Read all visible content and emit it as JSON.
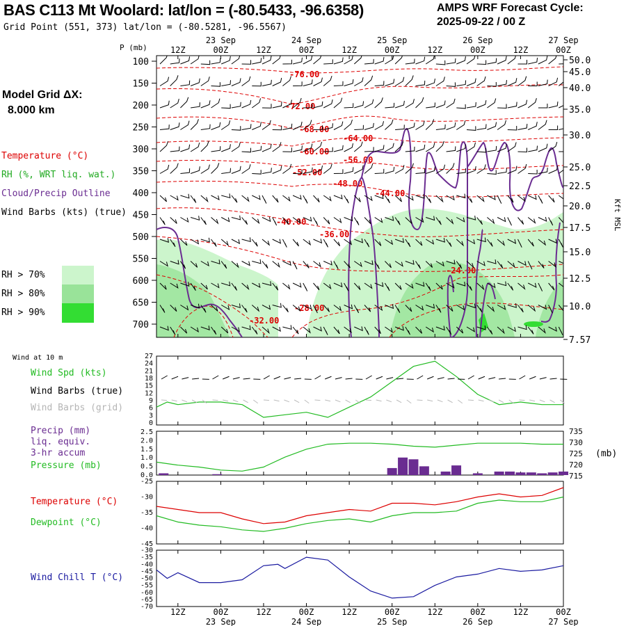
{
  "header": {
    "title": "BAS C113 Mt Woolard:  lat/lon = (-80.5433, -96.6358)",
    "grid_point": "Grid Point (551, 373) lat/lon = (-80.5281, -96.5567)",
    "forecast_line1": "AMPS WRF Forecast Cycle:",
    "forecast_line2": "2025-09-22 / 00  Z"
  },
  "model_grid": {
    "line1": "Model Grid ΔX:",
    "line2": "8.000 km"
  },
  "colors": {
    "temperature": "#dd0000",
    "rh": "#00bb00",
    "cloud": "#6a2c91",
    "wind": "#000000",
    "wind_grid": "#aaaaaa",
    "precip": "#6a2c91",
    "pressure": "#22bb22",
    "dewpoint": "#22bb22",
    "wind_chill": "#1a1aa0",
    "rh70": "#ccf5cc",
    "rh80": "#99e399",
    "rh90": "#33dd33"
  },
  "legend": {
    "temperature": "Temperature (°C)",
    "rh": "RH (%, WRT liq. wat.)",
    "cloud": "Cloud/Precip Outline",
    "wind": "Wind Barbs (kts) (true)",
    "rh70": "RH > 70%",
    "rh80": "RH > 80%",
    "rh90": "RH > 90%"
  },
  "time_axis": {
    "hours": [
      "12Z",
      "00Z",
      "12Z",
      "00Z",
      "12Z",
      "00Z",
      "12Z",
      "00Z",
      "12Z",
      "00Z"
    ],
    "days": [
      "23 Sep",
      "24 Sep",
      "25 Sep",
      "26 Sep",
      "27 Sep"
    ]
  },
  "chart_data": [
    {
      "type": "heatmap",
      "name": "cross-section",
      "ylabel": "P (mb)",
      "ylabel_right": "Kft MSL",
      "x_range_hours": [
        6,
        120
      ],
      "y_pressure_ticks": [
        "100",
        "150",
        "200",
        "250",
        "300",
        "350",
        "400",
        "450",
        "500",
        "550",
        "600",
        "650",
        "700"
      ],
      "y_kft_ticks": [
        "50.0",
        "45.0",
        "40.0",
        "35.0",
        "30.0",
        "25.0",
        "22.5",
        "20.0",
        "17.5",
        "15.0",
        "12.5",
        "10.0",
        "7.57"
      ],
      "temperature_labels": [
        "-76.00",
        "-72.00",
        "-68.00",
        "-64.00",
        "-60.00",
        "-56.00",
        "-52.00",
        "-48.00",
        "-44.00",
        "-40.00",
        "-36.00",
        "-32.00",
        "-28.00",
        "-24.00"
      ],
      "cloud_precip_outline": true
    },
    {
      "type": "line",
      "name": "wind-10m",
      "panel_title": "Wind at 10 m",
      "labels": {
        "speed": "Wind Spd (kts)",
        "barbs_true": "Wind Barbs (true)",
        "barbs_grid": "Wind Barbs (grid)"
      },
      "yticks": [
        "27",
        "24",
        "21",
        "18",
        "15",
        "12",
        "9",
        "6",
        "3",
        "0"
      ],
      "ylim": [
        0,
        27
      ],
      "x": [
        6,
        9,
        12,
        18,
        24,
        30,
        36,
        42,
        48,
        54,
        60,
        66,
        72,
        78,
        84,
        90,
        96,
        102,
        108,
        114,
        120
      ],
      "wind_speed": [
        7,
        9,
        8,
        9,
        9,
        8,
        3,
        4,
        5,
        3,
        7,
        11,
        17,
        23,
        25,
        19,
        12,
        8,
        9,
        8,
        8
      ]
    },
    {
      "type": "bar",
      "name": "precip-pressure",
      "labels": {
        "precip": "Precip (mm)",
        "equiv": "liq. equiv.",
        "accum": "3-hr accum",
        "pressure": "Pressure (mb)"
      },
      "yticks_left": [
        "2.5",
        "2.0",
        "1.5",
        "1.0",
        "0.5",
        "0.0"
      ],
      "yticks_right": [
        "735",
        "730",
        "725",
        "720",
        "715"
      ],
      "unit_right": "(mb)",
      "ylim_precip": [
        0,
        2.5
      ],
      "ylim_pressure": [
        714,
        736
      ],
      "x": [
        6,
        12,
        18,
        24,
        30,
        36,
        42,
        48,
        54,
        60,
        66,
        72,
        78,
        84,
        90,
        96,
        102,
        108,
        114,
        120
      ],
      "pressure": [
        720.5,
        719,
        718,
        716.5,
        716,
        718,
        723,
        727,
        729.5,
        730,
        730,
        729.5,
        728.5,
        728,
        729,
        730,
        730,
        730,
        729.5,
        729.5
      ],
      "precip_bars": [
        {
          "t": 8,
          "v": 0.1
        },
        {
          "t": 23,
          "v": 0.05
        },
        {
          "t": 72,
          "v": 0.4
        },
        {
          "t": 75,
          "v": 1.0
        },
        {
          "t": 78,
          "v": 0.9
        },
        {
          "t": 81,
          "v": 0.5
        },
        {
          "t": 87,
          "v": 0.2
        },
        {
          "t": 90,
          "v": 0.55
        },
        {
          "t": 96,
          "v": 0.1
        },
        {
          "t": 102,
          "v": 0.2
        },
        {
          "t": 105,
          "v": 0.2
        },
        {
          "t": 108,
          "v": 0.15
        },
        {
          "t": 111,
          "v": 0.15
        },
        {
          "t": 114,
          "v": 0.1
        },
        {
          "t": 117,
          "v": 0.15
        },
        {
          "t": 120,
          "v": 0.2
        }
      ]
    },
    {
      "type": "line",
      "name": "temperature-dewpoint",
      "labels": {
        "temperature": "Temperature (°C)",
        "dewpoint": "Dewpoint (°C)"
      },
      "yticks": [
        "-25",
        "-30",
        "-35",
        "-40",
        "-45"
      ],
      "ylim": [
        -45,
        -25
      ],
      "x": [
        6,
        12,
        18,
        24,
        30,
        36,
        42,
        48,
        54,
        60,
        66,
        72,
        78,
        84,
        90,
        96,
        102,
        108,
        114,
        120
      ],
      "temperature": [
        -33,
        -34,
        -35,
        -35,
        -37,
        -38.5,
        -38,
        -36,
        -35,
        -34,
        -34.5,
        -32,
        -32,
        -32.5,
        -31.5,
        -30,
        -29,
        -30,
        -29.5,
        -27
      ],
      "dewpoint": [
        -36,
        -38,
        -39,
        -39.5,
        -40.5,
        -41,
        -40,
        -38.5,
        -37.5,
        -37,
        -38,
        -36,
        -35,
        -35,
        -34.5,
        -32,
        -31,
        -31.5,
        -31.5,
        -30
      ]
    },
    {
      "type": "line",
      "name": "wind-chill",
      "labels": {
        "wind_chill": "Wind Chill T (°C)"
      },
      "yticks": [
        "-30",
        "-35",
        "-40",
        "-45",
        "-50",
        "-55",
        "-60",
        "-65",
        "-70"
      ],
      "ylim": [
        -70,
        -30
      ],
      "x": [
        6,
        9,
        12,
        18,
        24,
        30,
        36,
        40,
        42,
        48,
        54,
        60,
        66,
        72,
        78,
        84,
        90,
        96,
        102,
        108,
        114,
        120
      ],
      "wind_chill": [
        -44,
        -50,
        -46,
        -53,
        -53,
        -51,
        -41,
        -40,
        -43,
        -35,
        -37,
        -49,
        -59,
        -64,
        -63,
        -55,
        -49,
        -47,
        -43,
        -45,
        -44,
        -41
      ]
    }
  ]
}
